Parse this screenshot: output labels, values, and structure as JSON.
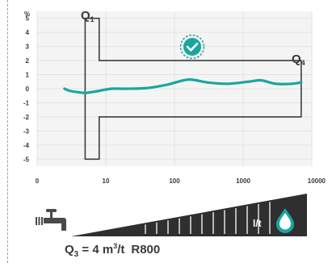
{
  "chart_data": {
    "type": "line",
    "x_scale": "log",
    "y_unit_label": "%",
    "y_ticks": [
      "5",
      "4",
      "3",
      "2",
      "1",
      "0",
      "-1",
      "-2",
      "-3",
      "-4",
      "-5"
    ],
    "x_ticks": [
      "0",
      "10",
      "100",
      "1000",
      "10000"
    ],
    "xlim": [
      1,
      10000
    ],
    "ylim": [
      -5.5,
      5.5
    ],
    "grid": true,
    "q1_label": "Q",
    "q1_sub": "1",
    "q4_label": "Q",
    "q4_sub": "4",
    "tolerance_envelope": {
      "low_flow_zone": {
        "x": [
          5,
          8
        ],
        "upper": 5,
        "lower": -5
      },
      "high_flow_zone": {
        "x": [
          8,
          7000
        ],
        "upper": 2,
        "lower": -2
      }
    },
    "series": [
      {
        "x": [
          2.5,
          3,
          4,
          5,
          6,
          8,
          12,
          20,
          40,
          80,
          160,
          300,
          600,
          1200,
          1800,
          3000,
          5000,
          7000
        ],
        "y": [
          0,
          -0.15,
          -0.25,
          -0.3,
          -0.25,
          -0.15,
          0,
          0,
          0.05,
          0.3,
          0.65,
          0.45,
          0.35,
          0.5,
          0.6,
          0.35,
          0.35,
          0.45
        ]
      }
    ]
  },
  "colors": {
    "curve": "#1aa6a0",
    "envelope": "#3d3d3d",
    "grid": "#e3e3e3",
    "plot_bg": "#f4f4f4",
    "badge": "#1aa6a0",
    "ramp": "#2f2f2f",
    "drop_fill": "#ffffff"
  },
  "icons": {
    "tap": "tap-icon",
    "check_badge": "check-badge-icon",
    "drop": "drop-icon"
  },
  "ramp_label": "l/t",
  "caption": {
    "q3": "Q",
    "q3_sub": "3",
    "q3_value": " = 4 m",
    "q3_unit_sup": "3",
    "q3_unit_rest": "/t",
    "model": "R800"
  }
}
